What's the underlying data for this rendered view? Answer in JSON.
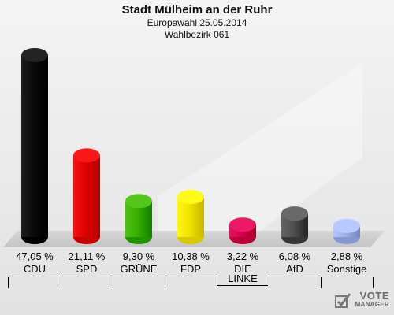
{
  "header": {
    "title": "Stadt Mülheim an der Ruhr",
    "line1": "Europawahl 25.05.2014",
    "line2": "Wahlbezirk 061"
  },
  "watermark": {
    "line1": "VOTE",
    "line2": "MANAGER"
  },
  "chart_data": {
    "type": "bar",
    "title": "Stadt Mülheim an der Ruhr",
    "subtitle": "Europawahl 25.05.2014 / Wahlbezirk 061",
    "categories": [
      "CDU",
      "SPD",
      "GRÜNE",
      "FDP",
      "DIE LINKE",
      "AfD",
      "Sonstige"
    ],
    "values": [
      47.05,
      21.11,
      9.3,
      10.38,
      3.22,
      6.08,
      2.88
    ],
    "value_labels": [
      "47,05 %",
      "21,11 %",
      "9,30 %",
      "10,38 %",
      "3,22 %",
      "6,08 %",
      "2,88 %"
    ],
    "colors": [
      "#0a0a0a",
      "#e00000",
      "#3aae00",
      "#f2e200",
      "#d4004e",
      "#505050",
      "#a0b0e8"
    ],
    "ylim": [
      0,
      47.05
    ],
    "grid": false,
    "legend": "none"
  }
}
